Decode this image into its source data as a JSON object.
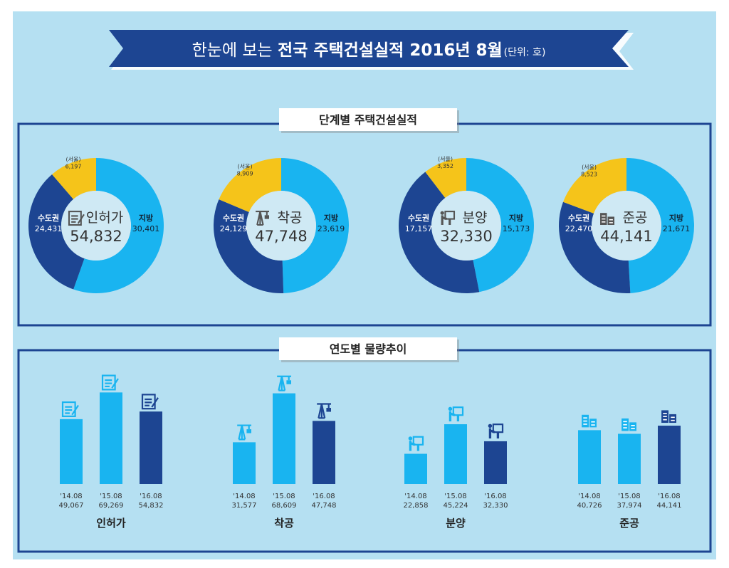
{
  "banner": {
    "title_light": "한눈에 보는",
    "title_bold": "전국 주택건설실적 2016년 8월",
    "unit": "(단위: 호)"
  },
  "colors": {
    "background": "#b5e0f2",
    "navy": "#1d4592",
    "light_blue": "#19b4f0",
    "seoul": "#f5c41a"
  },
  "chart_data": [
    {
      "type": "pie",
      "title": "단계별 주택건설실적",
      "donuts": [
        {
          "stage": "인허가",
          "icon": "permit-document-icon",
          "total": "54,832",
          "capital_label": "수도권",
          "capital": 24431,
          "capital_text": "24,431",
          "seoul_label": "(서울)",
          "seoul": 6197,
          "seoul_text": "6,197",
          "region_label": "지방",
          "region": 30401,
          "region_text": "30,401"
        },
        {
          "stage": "착공",
          "icon": "crane-icon",
          "total": "47,748",
          "capital_label": "수도권",
          "capital": 24129,
          "capital_text": "24,129",
          "seoul_label": "(서울)",
          "seoul": 8909,
          "seoul_text": "8,909",
          "region_label": "지방",
          "region": 23619,
          "region_text": "23,619"
        },
        {
          "stage": "분양",
          "icon": "presentation-board-icon",
          "total": "32,330",
          "capital_label": "수도권",
          "capital": 17157,
          "capital_text": "17,157",
          "seoul_label": "(서울)",
          "seoul": 3352,
          "seoul_text": "3,352",
          "region_label": "지방",
          "region": 15173,
          "region_text": "15,173"
        },
        {
          "stage": "준공",
          "icon": "buildings-icon",
          "total": "44,141",
          "capital_label": "수도권",
          "capital": 22470,
          "capital_text": "22,470",
          "seoul_label": "(서울)",
          "seoul": 8523,
          "seoul_text": "8,523",
          "region_label": "지방",
          "region": 21671,
          "region_text": "21,671"
        }
      ]
    },
    {
      "type": "bar",
      "title": "연도별 물량추이",
      "groups": [
        {
          "name": "인허가",
          "icon": "permit-document-icon",
          "categories": [
            "'14.08",
            "'15.08",
            "'16.08"
          ],
          "values": [
            49067,
            69269,
            54832
          ],
          "value_text": [
            "49,067",
            "69,269",
            "54,832"
          ]
        },
        {
          "name": "착공",
          "icon": "crane-icon",
          "categories": [
            "'14.08",
            "'15.08",
            "'16.08"
          ],
          "values": [
            31577,
            68609,
            47748
          ],
          "value_text": [
            "31,577",
            "68,609",
            "47,748"
          ]
        },
        {
          "name": "분양",
          "icon": "presentation-board-icon",
          "categories": [
            "'14.08",
            "'15.08",
            "'16.08"
          ],
          "values": [
            22858,
            45224,
            32330
          ],
          "value_text": [
            "22,858",
            "45,224",
            "32,330"
          ]
        },
        {
          "name": "준공",
          "icon": "buildings-icon",
          "categories": [
            "'14.08",
            "'15.08",
            "'16.08"
          ],
          "values": [
            40726,
            37974,
            44141
          ],
          "value_text": [
            "40,726",
            "37,974",
            "44,141"
          ]
        }
      ]
    }
  ]
}
